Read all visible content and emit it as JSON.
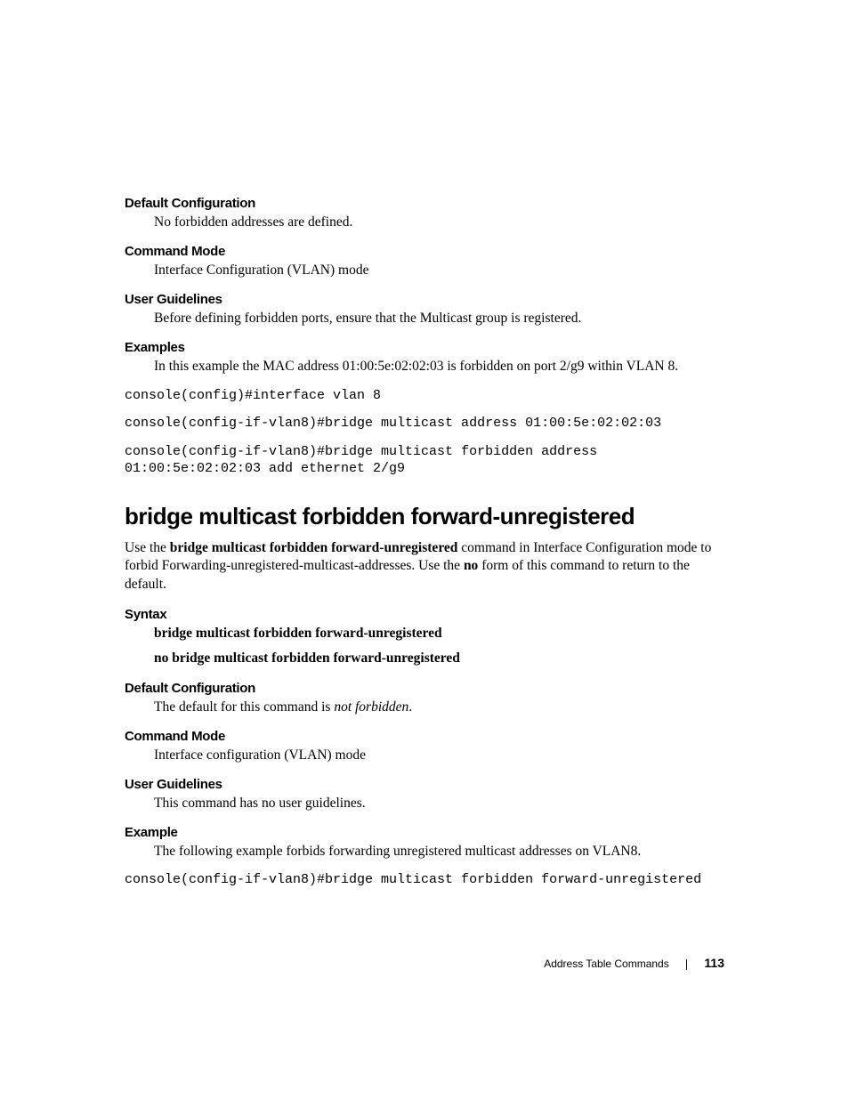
{
  "section1": {
    "defaultConfig": {
      "heading": "Default Configuration",
      "text": "No forbidden addresses are defined."
    },
    "commandMode": {
      "heading": "Command Mode",
      "text": "Interface Configuration (VLAN) mode"
    },
    "userGuidelines": {
      "heading": "User Guidelines",
      "text": "Before defining forbidden ports, ensure that the Multicast group is registered."
    },
    "examples": {
      "heading": "Examples",
      "text": "In this example the MAC address 01:00:5e:02:02:03 is forbidden on port 2/g9 within VLAN 8.",
      "code1": "console(config)#interface vlan 8",
      "code2": "console(config-if-vlan8)#bridge multicast address 01:00:5e:02:02:03",
      "code3": "console(config-if-vlan8)#bridge multicast forbidden address 01:00:5e:02:02:03 add ethernet 2/g9"
    }
  },
  "mainHeading": "bridge multicast forbidden forward-unregistered",
  "intro": {
    "part1": "Use the ",
    "bold1": "bridge multicast forbidden forward-unregistered",
    "part2": " command in Interface Configuration mode to forbid  Forwarding-unregistered-multicast-addresses. Use the ",
    "bold2": "no",
    "part3": " form of this command to return to the default."
  },
  "section2": {
    "syntax": {
      "heading": "Syntax",
      "line1": "bridge multicast forbidden forward-unregistered",
      "line2": "no bridge multicast forbidden forward-unregistered"
    },
    "defaultConfig": {
      "heading": "Default Configuration",
      "textPart1": "The default for this command is ",
      "textItalic": "not forbidden",
      "textPart2": "."
    },
    "commandMode": {
      "heading": "Command Mode",
      "text": "Interface configuration (VLAN) mode"
    },
    "userGuidelines": {
      "heading": "User Guidelines",
      "text": "This command has no user guidelines."
    },
    "example": {
      "heading": "Example",
      "text": "The following example forbids forwarding unregistered multicast addresses on VLAN8.",
      "code": "console(config-if-vlan8)#bridge multicast forbidden forward-unregistered"
    }
  },
  "footer": {
    "chapter": "Address Table Commands",
    "page": "113"
  }
}
